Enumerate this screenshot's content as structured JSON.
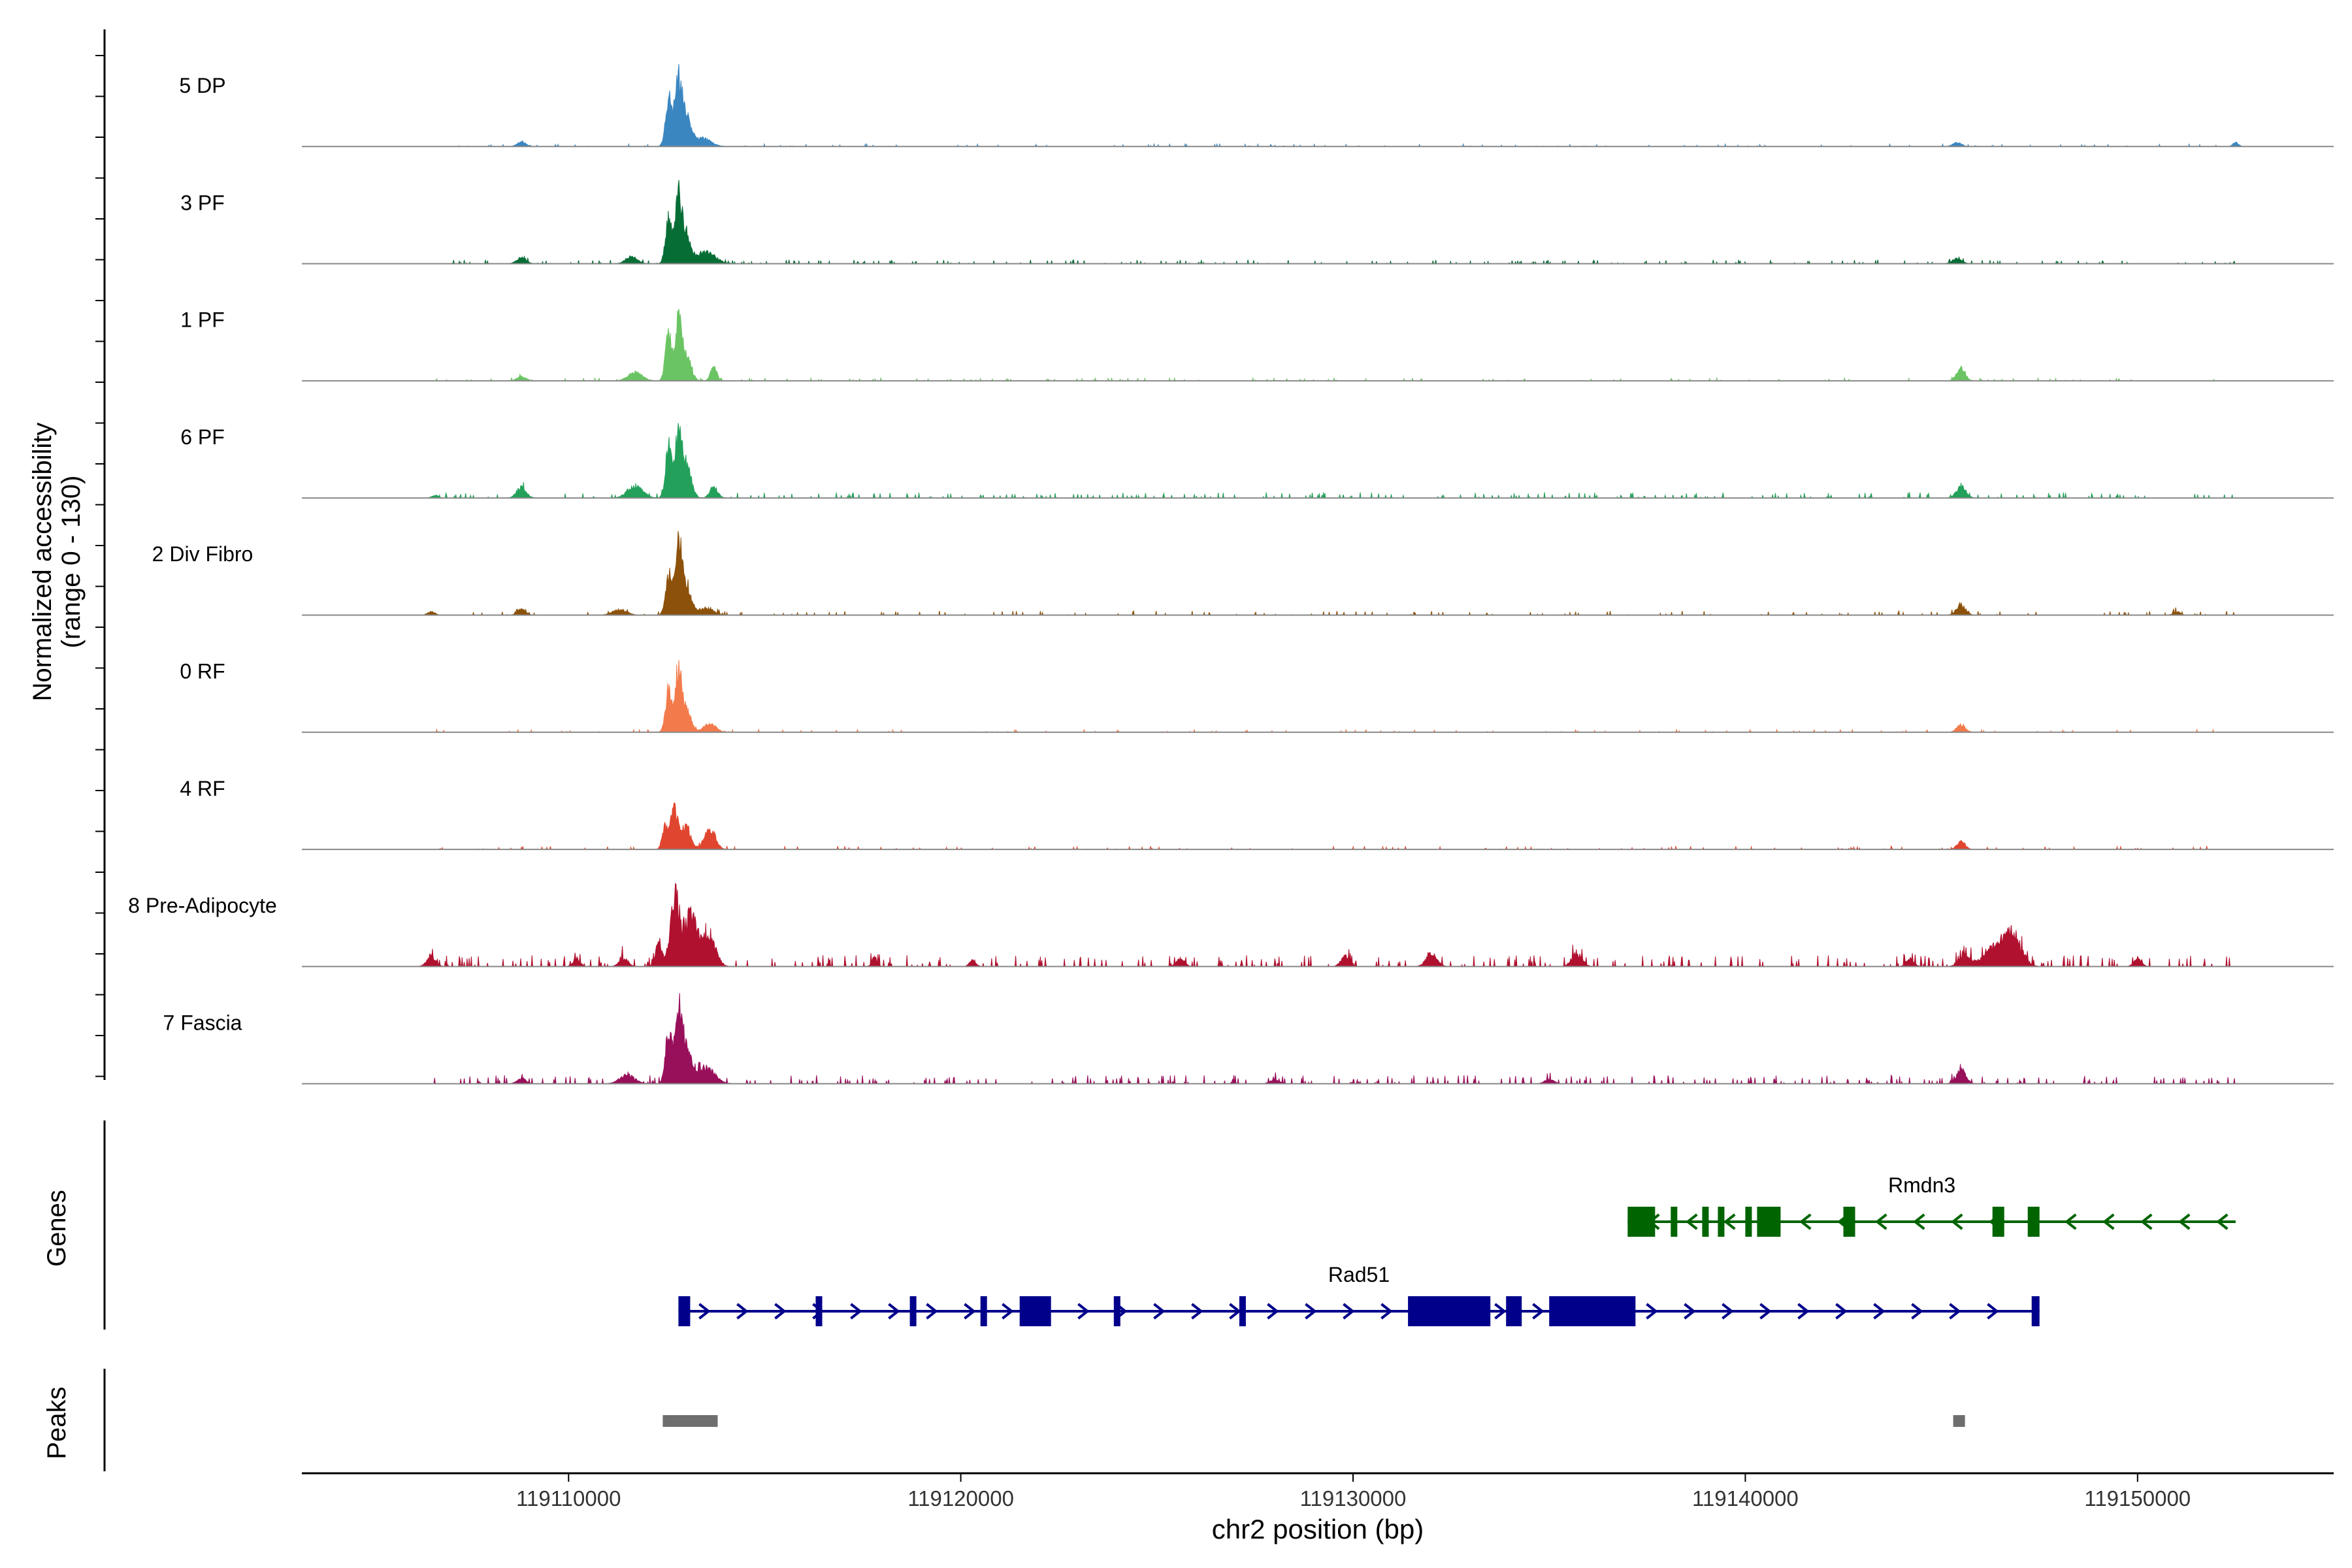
{
  "chart_data": {
    "type": "area",
    "genome_browser": true,
    "ylabel_line1": "Normalized accessibility",
    "ylabel_line2": "(range 0 - 130)",
    "y_range": [
      0,
      130
    ],
    "xlabel": "chr2 position (bp)",
    "xlim": [
      119103200,
      119155000
    ],
    "x_ticks": [
      119110000,
      119120000,
      119130000,
      119140000,
      119150000
    ],
    "x_tick_labels": [
      "119110000",
      "119120000",
      "119130000",
      "119140000",
      "119150000"
    ],
    "tracks": [
      {
        "name": "5 DP",
        "color": "#3a86c0",
        "peaks": [
          [
            119112800,
            92,
            90
          ],
          [
            119112550,
            68,
            80
          ],
          [
            119113000,
            40,
            120
          ],
          [
            119113400,
            12,
            220
          ],
          [
            119108800,
            7,
            110
          ],
          [
            119145400,
            6,
            110
          ],
          [
            119152500,
            6,
            70
          ]
        ],
        "noise": [
          [
            119106500,
            119152500,
            0.9,
            0.05
          ]
        ]
      },
      {
        "name": "3 PF",
        "color": "#066d35",
        "peaks": [
          [
            119112800,
            95,
            90
          ],
          [
            119112550,
            65,
            80
          ],
          [
            119113000,
            40,
            110
          ],
          [
            119113500,
            18,
            230
          ],
          [
            119111600,
            10,
            150
          ],
          [
            119108800,
            9,
            120
          ],
          [
            119145400,
            8,
            120
          ]
        ],
        "noise": [
          [
            119106500,
            119152500,
            1.4,
            0.08
          ]
        ]
      },
      {
        "name": "1 PF",
        "color": "#6bc463",
        "peaks": [
          [
            119112800,
            84,
            80
          ],
          [
            119112550,
            66,
            80
          ],
          [
            119113000,
            36,
            120
          ],
          [
            119113700,
            20,
            80
          ],
          [
            119111700,
            12,
            180
          ],
          [
            119108800,
            6,
            120
          ],
          [
            119145500,
            18,
            110
          ]
        ],
        "noise": [
          [
            119106500,
            119152500,
            1.0,
            0.05
          ]
        ]
      },
      {
        "name": "6 PF",
        "color": "#23a15a",
        "peaks": [
          [
            119112800,
            85,
            80
          ],
          [
            119112550,
            70,
            80
          ],
          [
            119113000,
            48,
            120
          ],
          [
            119113700,
            16,
            100
          ],
          [
            119111700,
            16,
            200
          ],
          [
            119108800,
            16,
            120
          ],
          [
            119145500,
            17,
            120
          ],
          [
            119106600,
            4,
            80
          ]
        ],
        "noise": [
          [
            119106500,
            119152500,
            2.0,
            0.1
          ]
        ]
      },
      {
        "name": "2 Div Fibro",
        "color": "#8c510a",
        "peaks": [
          [
            119112800,
            105,
            90
          ],
          [
            119112550,
            58,
            80
          ],
          [
            119113000,
            40,
            120
          ],
          [
            119113500,
            10,
            200
          ],
          [
            119111300,
            8,
            180
          ],
          [
            119108800,
            8,
            110
          ],
          [
            119145500,
            14,
            120
          ],
          [
            119106500,
            5,
            90
          ],
          [
            119151000,
            5,
            90
          ]
        ],
        "noise": [
          [
            119106500,
            119152500,
            1.5,
            0.06
          ]
        ]
      },
      {
        "name": "0 RF",
        "color": "#f37a4b",
        "peaks": [
          [
            119112800,
            88,
            80
          ],
          [
            119112550,
            62,
            80
          ],
          [
            119113000,
            32,
            120
          ],
          [
            119113600,
            13,
            150
          ],
          [
            119145500,
            11,
            110
          ]
        ],
        "noise": [
          [
            119106500,
            119152500,
            1.0,
            0.04
          ]
        ]
      },
      {
        "name": "4 RF",
        "color": "#e0462f",
        "peaks": [
          [
            119112700,
            60,
            100
          ],
          [
            119113000,
            35,
            110
          ],
          [
            119113600,
            30,
            140
          ],
          [
            119112450,
            30,
            70
          ],
          [
            119145500,
            12,
            100
          ]
        ],
        "noise": [
          [
            119106500,
            119152500,
            1.2,
            0.05
          ]
        ]
      },
      {
        "name": "8 Pre-Adipocyte",
        "color": "#b0112f",
        "peaks": [
          [
            119112700,
            98,
            110
          ],
          [
            119113100,
            72,
            200
          ],
          [
            119113600,
            42,
            160
          ],
          [
            119112300,
            32,
            90
          ],
          [
            119146800,
            48,
            220
          ],
          [
            119146300,
            25,
            250
          ],
          [
            119145600,
            16,
            150
          ],
          [
            119106500,
            13,
            120
          ],
          [
            119111400,
            13,
            110
          ],
          [
            119125600,
            13,
            100
          ],
          [
            119129800,
            15,
            110
          ],
          [
            119132000,
            18,
            140
          ],
          [
            119135700,
            18,
            140
          ],
          [
            119144200,
            11,
            100
          ],
          [
            119150000,
            11,
            100
          ],
          [
            119120300,
            10,
            80
          ],
          [
            119117800,
            13,
            70
          ],
          [
            119110200,
            12,
            90
          ]
        ],
        "noise": [
          [
            119106300,
            119152500,
            4.0,
            0.12
          ]
        ]
      },
      {
        "name": "7 Fascia",
        "color": "#980f5a",
        "peaks": [
          [
            119112800,
            95,
            90
          ],
          [
            119112550,
            78,
            80
          ],
          [
            119113000,
            55,
            120
          ],
          [
            119113500,
            24,
            220
          ],
          [
            119111500,
            12,
            190
          ],
          [
            119145500,
            20,
            120
          ],
          [
            119108800,
            8,
            110
          ],
          [
            119135000,
            7,
            110
          ],
          [
            119128000,
            6,
            120
          ]
        ],
        "noise": [
          [
            119106500,
            119152500,
            3.0,
            0.12
          ]
        ]
      }
    ],
    "genes": [
      {
        "name": "Rmdn3",
        "color": "#006400",
        "strand": "-",
        "start": 119137000,
        "end": 119152500,
        "exons": [
          [
            119137000,
            119137700
          ],
          [
            119138100,
            119138200
          ],
          [
            119138900,
            119139000
          ],
          [
            119139300,
            119139400
          ],
          [
            119140000,
            119140100
          ],
          [
            119140300,
            119140900
          ],
          [
            119142500,
            119142800
          ],
          [
            119146300,
            119146600
          ],
          [
            119147200,
            119147500
          ]
        ]
      },
      {
        "name": "Rad51",
        "color": "#00008b",
        "strand": "+",
        "start": 119112800,
        "end": 119147500,
        "exons": [
          [
            119112800,
            119113100
          ],
          [
            119116300,
            119116400
          ],
          [
            119118700,
            119118800
          ],
          [
            119120500,
            119120600
          ],
          [
            119121500,
            119122300
          ],
          [
            119123900,
            119124000
          ],
          [
            119127100,
            119127200
          ],
          [
            119131400,
            119133500
          ],
          [
            119133900,
            119134300
          ],
          [
            119135000,
            119137200
          ],
          [
            119147300,
            119147500
          ]
        ]
      }
    ],
    "peak_regions": [
      [
        119112400,
        119113800
      ],
      [
        119145300,
        119145600
      ]
    ],
    "genes_label": "Genes",
    "peaks_label": "Peaks"
  }
}
